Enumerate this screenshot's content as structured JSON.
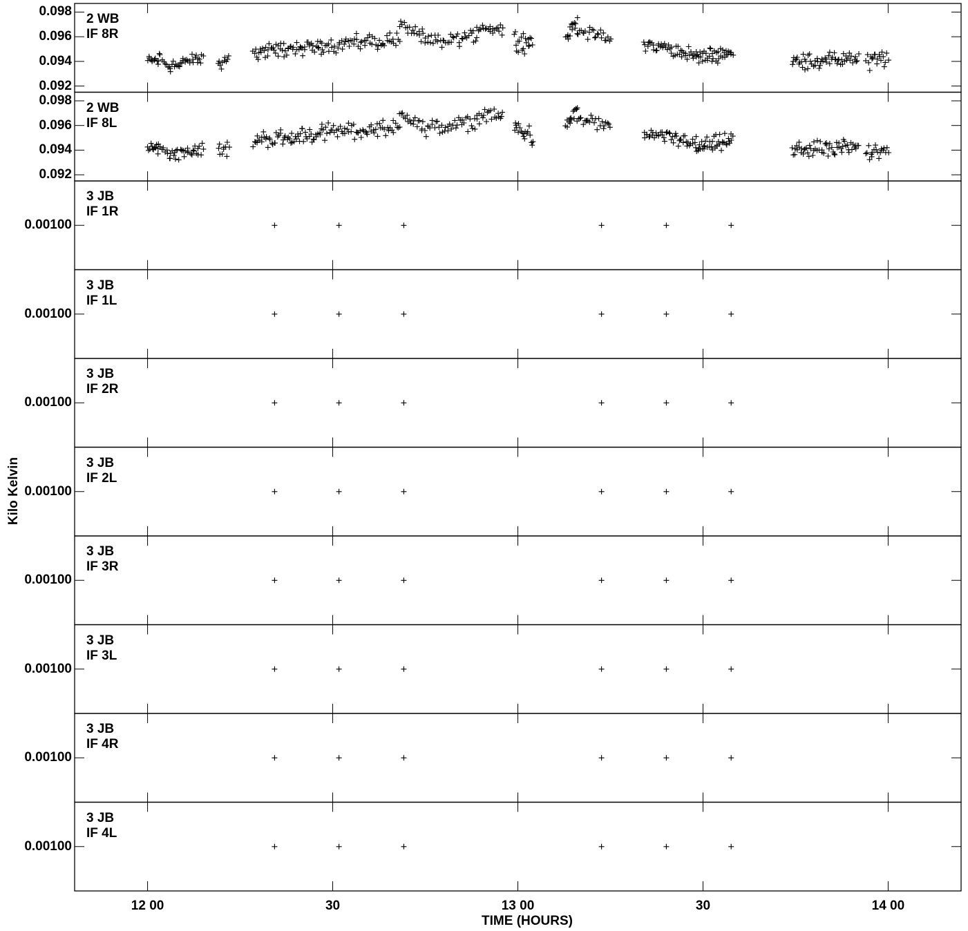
{
  "chart_data": {
    "type": "scatter",
    "xlabel": "TIME (HOURS)",
    "ylabel": "Kilo Kelvin",
    "x_unit": "hours",
    "xlim": [
      11.803,
      14.197
    ],
    "x_ticks": [
      {
        "value": 12.0,
        "label": "12 00"
      },
      {
        "value": 12.5,
        "label": "30"
      },
      {
        "value": 13.0,
        "label": "13 00"
      },
      {
        "value": 13.5,
        "label": "30"
      },
      {
        "value": 14.0,
        "label": "14 00"
      }
    ],
    "grid": false,
    "marker": "+",
    "color": "#000000",
    "panels": [
      {
        "label_line1": "2 WB",
        "label_line2": "IF 8R",
        "ylim": [
          0.0915,
          0.0987
        ],
        "y_ticks": [
          {
            "value": 0.092,
            "label": "0.092"
          },
          {
            "value": 0.094,
            "label": "0.094"
          },
          {
            "value": 0.096,
            "label": "0.096"
          },
          {
            "value": 0.098,
            "label": "0.098"
          }
        ],
        "clusters": [
          {
            "x_start": 12.0,
            "x_end": 12.03,
            "y_start": 0.0941,
            "y_end": 0.0941,
            "spread": 0.0005,
            "count": 12
          },
          {
            "x_start": 12.03,
            "x_end": 12.06,
            "y_start": 0.0945,
            "y_end": 0.0935,
            "spread": 0.0006,
            "count": 8
          },
          {
            "x_start": 12.06,
            "x_end": 12.15,
            "y_start": 0.0937,
            "y_end": 0.0942,
            "spread": 0.0007,
            "count": 30
          },
          {
            "x_start": 12.19,
            "x_end": 12.22,
            "y_start": 0.094,
            "y_end": 0.094,
            "spread": 0.0008,
            "count": 10
          },
          {
            "x_start": 12.285,
            "x_end": 12.47,
            "y_start": 0.0948,
            "y_end": 0.0952,
            "spread": 0.0008,
            "count": 60
          },
          {
            "x_start": 12.47,
            "x_end": 12.68,
            "y_start": 0.0953,
            "y_end": 0.0958,
            "spread": 0.0008,
            "count": 60
          },
          {
            "x_start": 12.68,
            "x_end": 12.74,
            "y_start": 0.097,
            "y_end": 0.0962,
            "spread": 0.0006,
            "count": 16
          },
          {
            "x_start": 12.74,
            "x_end": 12.89,
            "y_start": 0.0955,
            "y_end": 0.096,
            "spread": 0.0008,
            "count": 40
          },
          {
            "x_start": 12.89,
            "x_end": 12.96,
            "y_start": 0.0968,
            "y_end": 0.0967,
            "spread": 0.0007,
            "count": 20
          },
          {
            "x_start": 12.99,
            "x_end": 13.04,
            "y_start": 0.0958,
            "y_end": 0.0953,
            "spread": 0.001,
            "count": 20
          },
          {
            "x_start": 13.13,
            "x_end": 13.16,
            "y_start": 0.096,
            "y_end": 0.0972,
            "spread": 0.0006,
            "count": 14
          },
          {
            "x_start": 13.16,
            "x_end": 13.25,
            "y_start": 0.0966,
            "y_end": 0.0958,
            "spread": 0.0006,
            "count": 24
          },
          {
            "x_start": 13.34,
            "x_end": 13.48,
            "y_start": 0.0954,
            "y_end": 0.0946,
            "spread": 0.0007,
            "count": 45
          },
          {
            "x_start": 13.48,
            "x_end": 13.58,
            "y_start": 0.0942,
            "y_end": 0.0948,
            "spread": 0.0008,
            "count": 40
          },
          {
            "x_start": 13.74,
            "x_end": 13.92,
            "y_start": 0.094,
            "y_end": 0.0942,
            "spread": 0.0008,
            "count": 60
          },
          {
            "x_start": 13.94,
            "x_end": 14.0,
            "y_start": 0.094,
            "y_end": 0.0942,
            "spread": 0.0009,
            "count": 20
          }
        ]
      },
      {
        "label_line1": "2 WB",
        "label_line2": "IF 8L",
        "ylim": [
          0.0915,
          0.0987
        ],
        "y_ticks": [
          {
            "value": 0.092,
            "label": "0.092"
          },
          {
            "value": 0.094,
            "label": "0.094"
          },
          {
            "value": 0.096,
            "label": "0.096"
          },
          {
            "value": 0.098,
            "label": "0.098"
          }
        ],
        "clusters": [
          {
            "x_start": 12.0,
            "x_end": 12.03,
            "y_start": 0.0941,
            "y_end": 0.0941,
            "spread": 0.0005,
            "count": 12
          },
          {
            "x_start": 12.03,
            "x_end": 12.06,
            "y_start": 0.0945,
            "y_end": 0.0935,
            "spread": 0.0006,
            "count": 8
          },
          {
            "x_start": 12.06,
            "x_end": 12.15,
            "y_start": 0.0937,
            "y_end": 0.0942,
            "spread": 0.0007,
            "count": 30
          },
          {
            "x_start": 12.19,
            "x_end": 12.22,
            "y_start": 0.094,
            "y_end": 0.094,
            "spread": 0.0008,
            "count": 10
          },
          {
            "x_start": 12.285,
            "x_end": 12.47,
            "y_start": 0.0948,
            "y_end": 0.0953,
            "spread": 0.0008,
            "count": 60
          },
          {
            "x_start": 12.47,
            "x_end": 12.68,
            "y_start": 0.0955,
            "y_end": 0.0958,
            "spread": 0.0008,
            "count": 60
          },
          {
            "x_start": 12.68,
            "x_end": 12.74,
            "y_start": 0.097,
            "y_end": 0.0962,
            "spread": 0.0006,
            "count": 16
          },
          {
            "x_start": 12.74,
            "x_end": 12.89,
            "y_start": 0.0957,
            "y_end": 0.0962,
            "spread": 0.0008,
            "count": 40
          },
          {
            "x_start": 12.89,
            "x_end": 12.96,
            "y_start": 0.0968,
            "y_end": 0.0967,
            "spread": 0.0007,
            "count": 20
          },
          {
            "x_start": 12.99,
            "x_end": 13.04,
            "y_start": 0.0958,
            "y_end": 0.0953,
            "spread": 0.001,
            "count": 20
          },
          {
            "x_start": 13.13,
            "x_end": 13.16,
            "y_start": 0.096,
            "y_end": 0.0972,
            "spread": 0.0006,
            "count": 14
          },
          {
            "x_start": 13.16,
            "x_end": 13.25,
            "y_start": 0.0966,
            "y_end": 0.0958,
            "spread": 0.0006,
            "count": 24
          },
          {
            "x_start": 13.34,
            "x_end": 13.48,
            "y_start": 0.0954,
            "y_end": 0.0946,
            "spread": 0.0007,
            "count": 45
          },
          {
            "x_start": 13.48,
            "x_end": 13.58,
            "y_start": 0.0942,
            "y_end": 0.0948,
            "spread": 0.0008,
            "count": 40
          },
          {
            "x_start": 13.74,
            "x_end": 13.92,
            "y_start": 0.094,
            "y_end": 0.0942,
            "spread": 0.0008,
            "count": 60
          },
          {
            "x_start": 13.94,
            "x_end": 14.0,
            "y_start": 0.094,
            "y_end": 0.0942,
            "spread": 0.0009,
            "count": 20
          }
        ]
      },
      {
        "label_line1": "3 JB",
        "label_line2": "IF 1R",
        "ylim": [
          0.0005,
          0.0015
        ],
        "y_ticks": [
          {
            "value": 0.001,
            "label": "0.00100"
          }
        ],
        "points": [
          [
            12.343,
            0.001
          ],
          [
            12.517,
            0.001
          ],
          [
            12.692,
            0.001
          ],
          [
            13.226,
            0.001
          ],
          [
            13.401,
            0.001
          ],
          [
            13.576,
            0.001
          ]
        ]
      },
      {
        "label_line1": "3 JB",
        "label_line2": "IF 1L",
        "ylim": [
          0.0005,
          0.0015
        ],
        "y_ticks": [
          {
            "value": 0.001,
            "label": "0.00100"
          }
        ],
        "points": [
          [
            12.343,
            0.001
          ],
          [
            12.517,
            0.001
          ],
          [
            12.692,
            0.001
          ],
          [
            13.226,
            0.001
          ],
          [
            13.401,
            0.001
          ],
          [
            13.576,
            0.001
          ]
        ]
      },
      {
        "label_line1": "3 JB",
        "label_line2": "IF 2R",
        "ylim": [
          0.0005,
          0.0015
        ],
        "y_ticks": [
          {
            "value": 0.001,
            "label": "0.00100"
          }
        ],
        "points": [
          [
            12.343,
            0.001
          ],
          [
            12.517,
            0.001
          ],
          [
            12.692,
            0.001
          ],
          [
            13.226,
            0.001
          ],
          [
            13.401,
            0.001
          ],
          [
            13.576,
            0.001
          ]
        ]
      },
      {
        "label_line1": "3 JB",
        "label_line2": "IF 2L",
        "ylim": [
          0.0005,
          0.0015
        ],
        "y_ticks": [
          {
            "value": 0.001,
            "label": "0.00100"
          }
        ],
        "points": [
          [
            12.343,
            0.001
          ],
          [
            12.517,
            0.001
          ],
          [
            12.692,
            0.001
          ],
          [
            13.226,
            0.001
          ],
          [
            13.401,
            0.001
          ],
          [
            13.576,
            0.001
          ]
        ]
      },
      {
        "label_line1": "3 JB",
        "label_line2": "IF 3R",
        "ylim": [
          0.0005,
          0.0015
        ],
        "y_ticks": [
          {
            "value": 0.001,
            "label": "0.00100"
          }
        ],
        "points": [
          [
            12.343,
            0.001
          ],
          [
            12.517,
            0.001
          ],
          [
            12.692,
            0.001
          ],
          [
            13.226,
            0.001
          ],
          [
            13.401,
            0.001
          ],
          [
            13.576,
            0.001
          ]
        ]
      },
      {
        "label_line1": "3 JB",
        "label_line2": "IF 3L",
        "ylim": [
          0.0005,
          0.0015
        ],
        "y_ticks": [
          {
            "value": 0.001,
            "label": "0.00100"
          }
        ],
        "points": [
          [
            12.343,
            0.001
          ],
          [
            12.517,
            0.001
          ],
          [
            12.692,
            0.001
          ],
          [
            13.226,
            0.001
          ],
          [
            13.401,
            0.001
          ],
          [
            13.576,
            0.001
          ]
        ]
      },
      {
        "label_line1": "3 JB",
        "label_line2": "IF 4R",
        "ylim": [
          0.0005,
          0.0015
        ],
        "y_ticks": [
          {
            "value": 0.001,
            "label": "0.00100"
          }
        ],
        "points": [
          [
            12.343,
            0.001
          ],
          [
            12.517,
            0.001
          ],
          [
            12.692,
            0.001
          ],
          [
            13.226,
            0.001
          ],
          [
            13.401,
            0.001
          ],
          [
            13.576,
            0.001
          ]
        ]
      },
      {
        "label_line1": "3 JB",
        "label_line2": "IF 4L",
        "ylim": [
          0.0005,
          0.0015
        ],
        "y_ticks": [
          {
            "value": 0.001,
            "label": "0.00100"
          }
        ],
        "points": [
          [
            12.343,
            0.001
          ],
          [
            12.517,
            0.001
          ],
          [
            12.692,
            0.001
          ],
          [
            13.226,
            0.001
          ],
          [
            13.401,
            0.001
          ],
          [
            13.576,
            0.001
          ]
        ]
      }
    ]
  }
}
